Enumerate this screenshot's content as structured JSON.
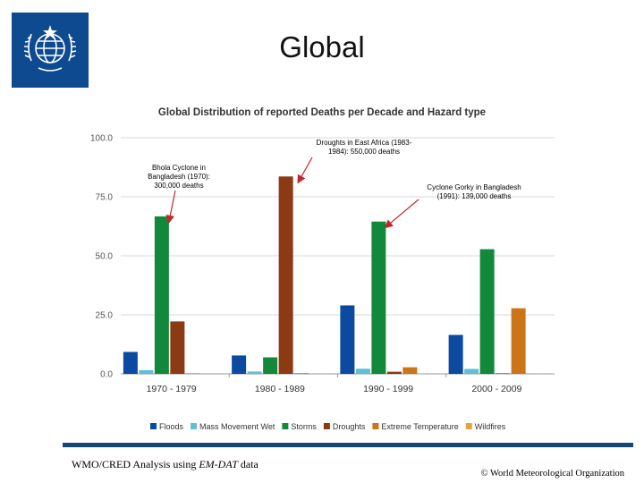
{
  "slide": {
    "title": "Global",
    "footer_left_prefix": "WMO/CRED Analysis using ",
    "footer_left_em": "EM-DAT",
    "footer_left_suffix": " data",
    "footer_right": "© World Meteorological Organization",
    "logo": {
      "icon": "wmo-emblem-icon",
      "color": "#0d4a8f"
    },
    "rule_color": "#16457c"
  },
  "chart_data": {
    "type": "bar",
    "title": "Global Distribution of reported Deaths per Decade and Hazard type",
    "xlabel": "",
    "ylabel": "",
    "ylim": [
      0,
      100
    ],
    "yticks": [
      "0.0",
      "25.0",
      "50.0",
      "75.0",
      "100.0"
    ],
    "grid": true,
    "legend_position": "bottom",
    "categories": [
      "1970 - 1979",
      "1980 - 1989",
      "1990 - 1999",
      "2000 - 2009"
    ],
    "series": [
      {
        "name": "Floods",
        "color": "#0b4aa0",
        "values": [
          9.3,
          7.8,
          29.0,
          16.5
        ]
      },
      {
        "name": "Mass Movement Wet",
        "color": "#5cc0d6",
        "values": [
          1.6,
          1.0,
          2.2,
          2.1
        ]
      },
      {
        "name": "Storms",
        "color": "#12893a",
        "values": [
          66.7,
          7.0,
          64.5,
          52.8
        ]
      },
      {
        "name": "Droughts",
        "color": "#8b3a14",
        "values": [
          22.2,
          83.6,
          0.9,
          0.2
        ]
      },
      {
        "name": "Extreme Temperature",
        "color": "#cc7418",
        "values": [
          0.1,
          0.3,
          2.8,
          27.8
        ]
      },
      {
        "name": "Wildfires",
        "color": "#e8a23a",
        "values": [
          0.0,
          0.0,
          0.1,
          0.1
        ]
      }
    ],
    "annotations": [
      {
        "lines": [
          "Bhola Cyclone in",
          "Bangladesh (1970):",
          "300,000 deaths"
        ],
        "category": 0,
        "series": 2
      },
      {
        "lines": [
          "Droughts in East Africa (1983-",
          "1984): 550,000 deaths"
        ],
        "category": 1,
        "series": 3
      },
      {
        "lines": [
          "Cyclone Gorky in Bangladesh",
          "(1991): 139,000 deaths"
        ],
        "category": 2,
        "series": 2
      }
    ]
  }
}
